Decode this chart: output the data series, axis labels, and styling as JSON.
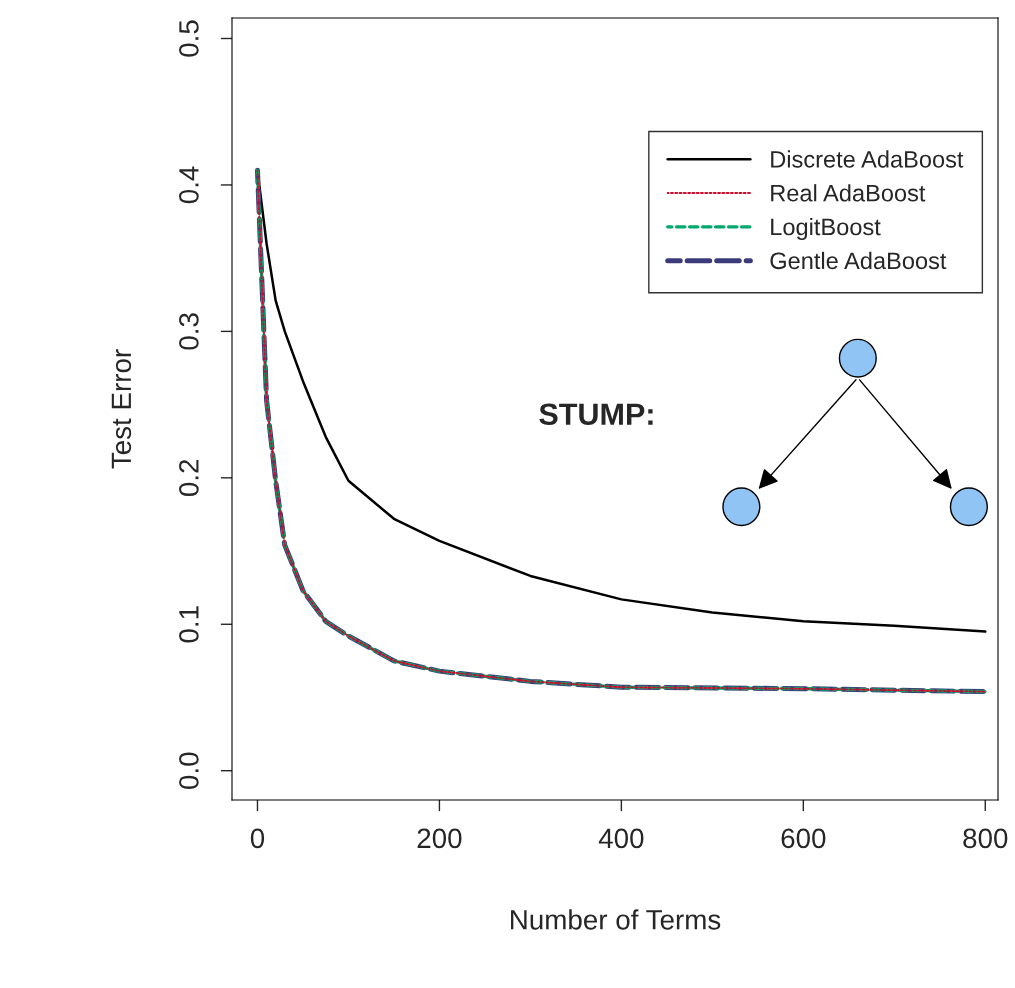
{
  "chart_data": {
    "type": "line",
    "xlabel": "Number of Terms",
    "ylabel": "Test Error",
    "xlim": [
      -28,
      814
    ],
    "ylim": [
      -0.02,
      0.514
    ],
    "xticks": [
      0,
      200,
      400,
      600,
      800
    ],
    "yticks": [
      {
        "value": 0,
        "label": "0.0"
      },
      {
        "value": 0.1,
        "label": "0.1"
      },
      {
        "value": 0.2,
        "label": "0.2"
      },
      {
        "value": 0.3,
        "label": "0.3"
      },
      {
        "value": 0.4,
        "label": "0.4"
      },
      {
        "value": 0.5,
        "label": "0.5"
      }
    ],
    "grid": false,
    "legend": "top right",
    "annotations": [
      "STUMP:"
    ],
    "series": [
      {
        "name": "Discrete AdaBoost",
        "color": "#000000",
        "line_style": "solid",
        "x": [
          0,
          10,
          20,
          30,
          50,
          75,
          100,
          150,
          200,
          300,
          400,
          500,
          600,
          700,
          800
        ],
        "values": [
          0.41,
          0.36,
          0.321,
          0.3,
          0.266,
          0.228,
          0.198,
          0.172,
          0.157,
          0.133,
          0.117,
          0.108,
          0.102,
          0.099,
          0.095
        ]
      },
      {
        "name": "Real AdaBoost",
        "color": "#c8102e",
        "line_style": "dotted",
        "x": [
          0,
          10,
          20,
          30,
          50,
          75,
          100,
          150,
          200,
          300,
          400,
          600,
          800
        ],
        "values": [
          0.41,
          0.253,
          0.198,
          0.154,
          0.123,
          0.102,
          0.092,
          0.075,
          0.068,
          0.061,
          0.057,
          0.056,
          0.054
        ]
      },
      {
        "name": "LogitBoost",
        "color": "#00a86b",
        "line_style": "dashed",
        "x": [
          0,
          10,
          20,
          30,
          50,
          75,
          100,
          150,
          200,
          300,
          400,
          600,
          800
        ],
        "values": [
          0.41,
          0.253,
          0.198,
          0.154,
          0.123,
          0.102,
          0.092,
          0.075,
          0.068,
          0.061,
          0.057,
          0.056,
          0.054
        ]
      },
      {
        "name": "Gentle AdaBoost",
        "color": "#3b3b7a",
        "line_style": "longdash",
        "x": [
          0,
          10,
          20,
          30,
          50,
          75,
          100,
          150,
          200,
          300,
          400,
          600,
          800
        ],
        "values": [
          0.41,
          0.253,
          0.198,
          0.154,
          0.123,
          0.102,
          0.092,
          0.075,
          0.068,
          0.061,
          0.057,
          0.056,
          0.054
        ]
      }
    ]
  }
}
